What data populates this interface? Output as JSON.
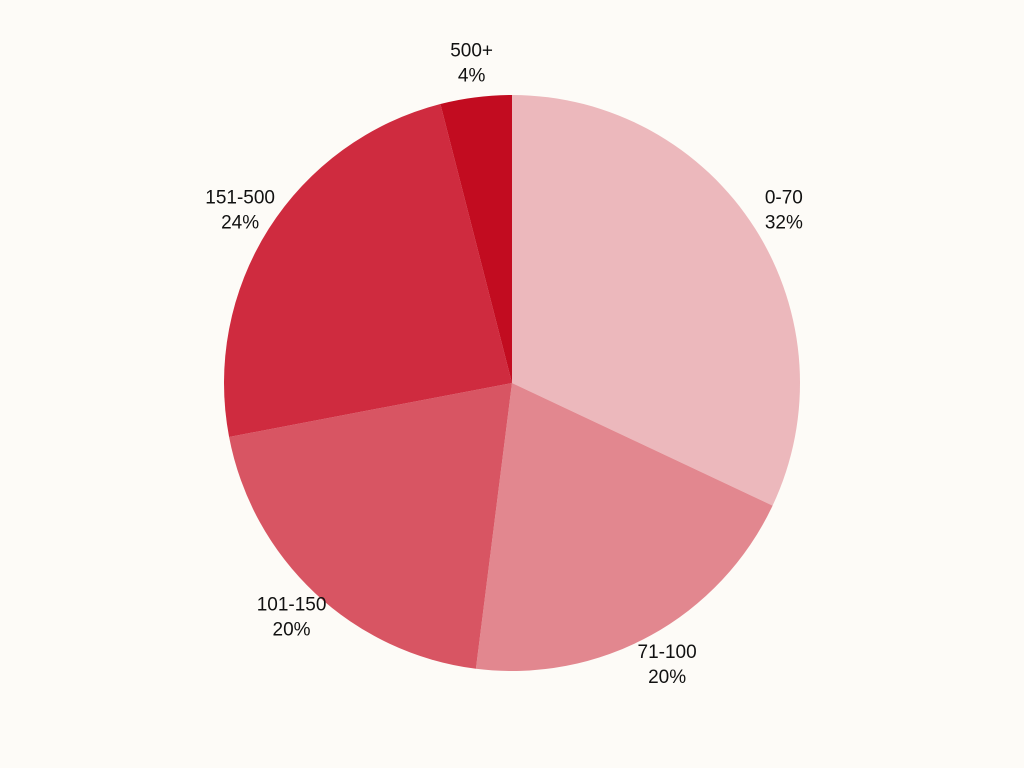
{
  "chart_data": {
    "type": "pie",
    "categories": [
      "0-70",
      "71-100",
      "101-150",
      "151-500",
      "500+"
    ],
    "values": [
      32,
      20,
      20,
      24,
      4
    ],
    "value_labels": [
      "32%",
      "20%",
      "20%",
      "24%",
      "4%"
    ],
    "colors": [
      "#ecb8bc",
      "#e2878f",
      "#d85563",
      "#cf2b3f",
      "#c20c20"
    ]
  }
}
